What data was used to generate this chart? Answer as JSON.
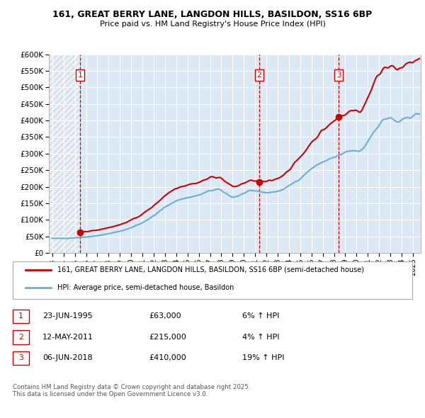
{
  "title_line1": "161, GREAT BERRY LANE, LANGDON HILLS, BASILDON, SS16 6BP",
  "title_line2": "Price paid vs. HM Land Registry's House Price Index (HPI)",
  "ylim": [
    0,
    600000
  ],
  "yticks": [
    0,
    50000,
    100000,
    150000,
    200000,
    250000,
    300000,
    350000,
    400000,
    450000,
    500000,
    550000,
    600000
  ],
  "ytick_labels": [
    "£0",
    "£50K",
    "£100K",
    "£150K",
    "£200K",
    "£250K",
    "£300K",
    "£350K",
    "£400K",
    "£450K",
    "£500K",
    "£550K",
    "£600K"
  ],
  "xlim_start": 1992.7,
  "xlim_end": 2025.7,
  "xticks": [
    1993,
    1994,
    1995,
    1996,
    1997,
    1998,
    1999,
    2000,
    2001,
    2002,
    2003,
    2004,
    2005,
    2006,
    2007,
    2008,
    2009,
    2010,
    2011,
    2012,
    2013,
    2014,
    2015,
    2016,
    2017,
    2018,
    2019,
    2020,
    2021,
    2022,
    2023,
    2024,
    2025
  ],
  "hpi_color": "#6baed6",
  "price_color": "#cc0000",
  "dashed_line_color": "#cc0000",
  "plot_bg_color": "#dce9f5",
  "sale_points": [
    {
      "year": 1995.47,
      "price": 63000,
      "label": "1"
    },
    {
      "year": 2011.36,
      "price": 215000,
      "label": "2"
    },
    {
      "year": 2018.43,
      "price": 410000,
      "label": "3"
    }
  ],
  "legend_label_price": "161, GREAT BERRY LANE, LANGDON HILLS, BASILDON, SS16 6BP (semi-detached house)",
  "legend_label_hpi": "HPI: Average price, semi-detached house, Basildon",
  "table_rows": [
    {
      "num": "1",
      "date": "23-JUN-1995",
      "price": "£63,000",
      "change": "6% ↑ HPI"
    },
    {
      "num": "2",
      "date": "12-MAY-2011",
      "price": "£215,000",
      "change": "4% ↑ HPI"
    },
    {
      "num": "3",
      "date": "06-JUN-2018",
      "price": "£410,000",
      "change": "19% ↑ HPI"
    }
  ],
  "footer_text": "Contains HM Land Registry data © Crown copyright and database right 2025.\nThis data is licensed under the Open Government Licence v3.0."
}
